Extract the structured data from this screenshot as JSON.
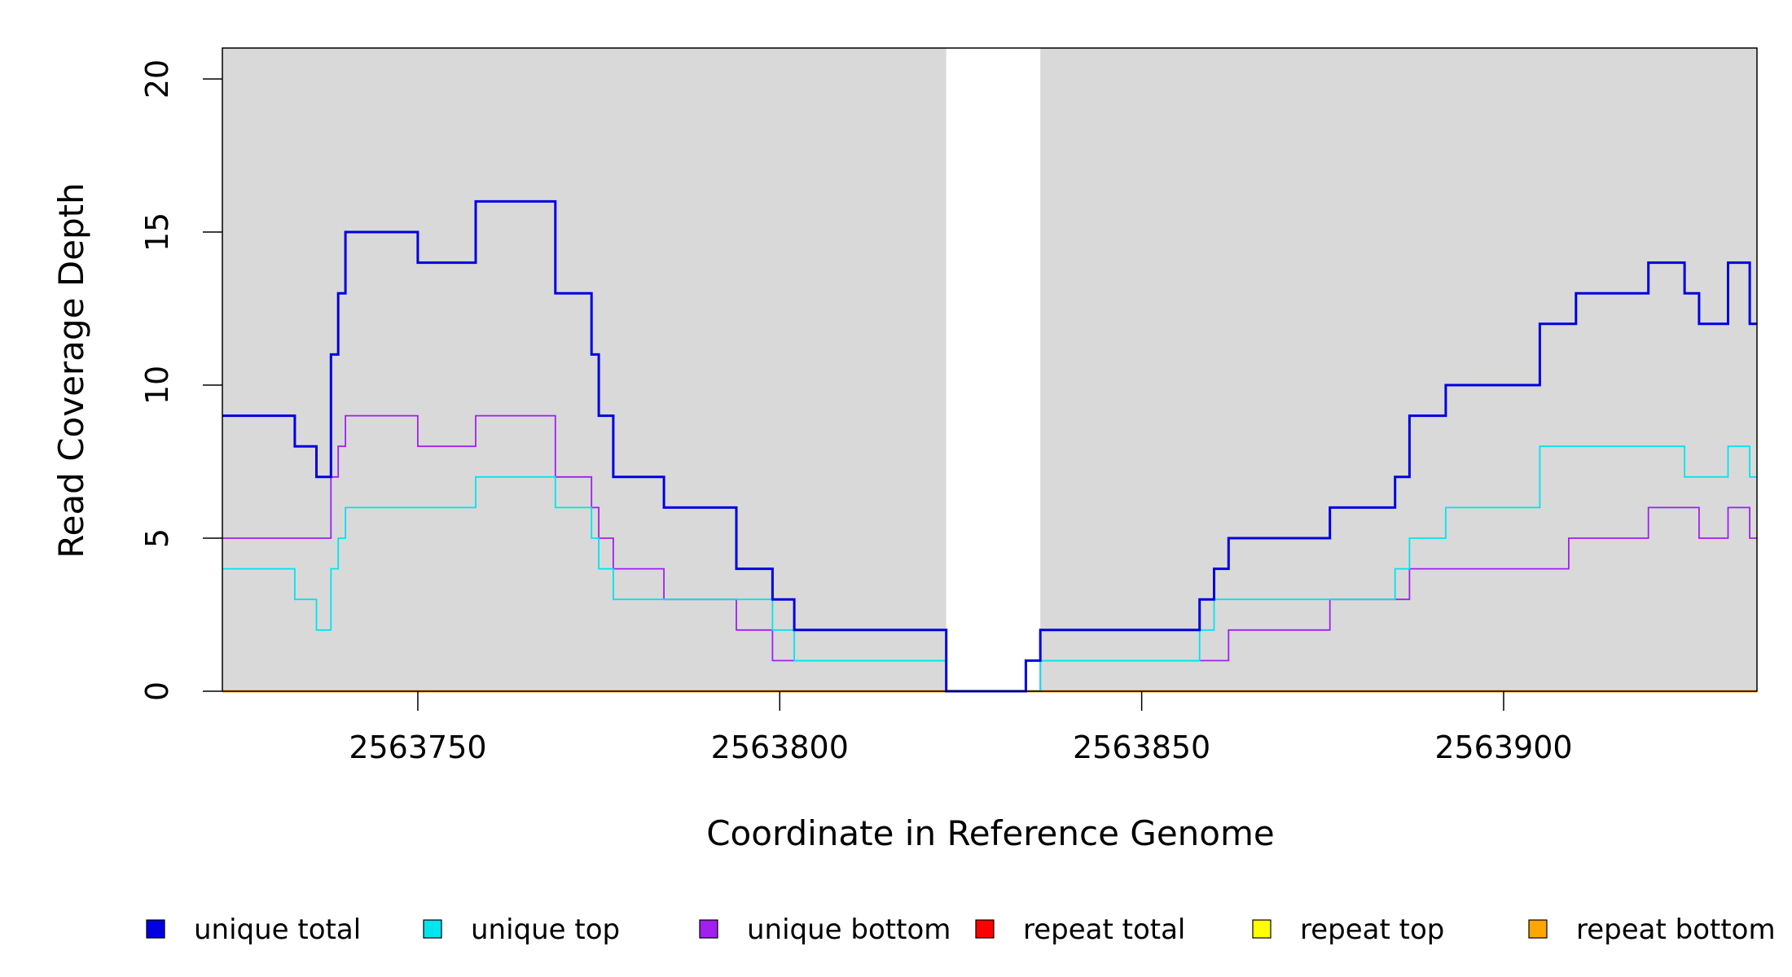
{
  "chart_data": {
    "type": "line",
    "step": true,
    "xlabel": "Coordinate in Reference Genome",
    "ylabel": "Read Coverage Depth",
    "xlim": [
      2563723,
      2563935
    ],
    "ylim": [
      0,
      20
    ],
    "x_ticks": [
      2563750,
      2563800,
      2563850,
      2563900
    ],
    "x_tick_labels": [
      "2563750",
      "2563800",
      "2563850",
      "2563900"
    ],
    "y_ticks": [
      0,
      5,
      10,
      15,
      20
    ],
    "y_tick_labels": [
      "0",
      "5",
      "10",
      "15",
      "20"
    ],
    "background_color": "#d9d9d9",
    "gap_region": [
      2563823,
      2563836
    ],
    "legend_position": "bottom",
    "series": [
      {
        "name": "unique total",
        "color": "#0000e0",
        "x": [
          2563723,
          2563733,
          2563736,
          2563738,
          2563739,
          2563740,
          2563750,
          2563758,
          2563769,
          2563774,
          2563775,
          2563777,
          2563784,
          2563794,
          2563799,
          2563802,
          2563823,
          2563834,
          2563836,
          2563858,
          2563860,
          2563862,
          2563876,
          2563885,
          2563887,
          2563892,
          2563905,
          2563910,
          2563920,
          2563925,
          2563927,
          2563931,
          2563934,
          2563935
        ],
        "values": [
          9,
          8,
          7,
          11,
          13,
          15,
          14,
          16,
          13,
          11,
          9,
          7,
          6,
          4,
          3,
          2,
          0,
          1,
          2,
          3,
          4,
          5,
          6,
          7,
          9,
          10,
          12,
          13,
          14,
          13,
          12,
          14,
          12,
          12
        ]
      },
      {
        "name": "unique top",
        "color": "#00e5ee",
        "x": [
          2563723,
          2563733,
          2563736,
          2563738,
          2563739,
          2563740,
          2563758,
          2563769,
          2563774,
          2563775,
          2563777,
          2563784,
          2563799,
          2563802,
          2563823,
          2563836,
          2563858,
          2563860,
          2563876,
          2563885,
          2563887,
          2563892,
          2563905,
          2563925,
          2563931,
          2563934,
          2563935
        ],
        "values": [
          4,
          3,
          2,
          4,
          5,
          6,
          7,
          6,
          5,
          4,
          3,
          3,
          2,
          1,
          0,
          1,
          2,
          3,
          3,
          4,
          5,
          6,
          8,
          7,
          8,
          7,
          7
        ]
      },
      {
        "name": "unique bottom",
        "color": "#a020f0",
        "x": [
          2563723,
          2563738,
          2563739,
          2563740,
          2563750,
          2563758,
          2563769,
          2563774,
          2563775,
          2563777,
          2563784,
          2563794,
          2563799,
          2563823,
          2563836,
          2563862,
          2563876,
          2563887,
          2563909,
          2563920,
          2563927,
          2563931,
          2563934,
          2563935
        ],
        "values": [
          5,
          7,
          8,
          9,
          8,
          9,
          7,
          6,
          5,
          4,
          3,
          2,
          1,
          0,
          1,
          2,
          3,
          4,
          5,
          6,
          5,
          6,
          5,
          5
        ]
      },
      {
        "name": "repeat total",
        "color": "#ff0000",
        "x": [
          2563723,
          2563935
        ],
        "values": [
          0,
          0
        ]
      },
      {
        "name": "repeat top",
        "color": "#ffff00",
        "x": [
          2563723,
          2563935
        ],
        "values": [
          0,
          0
        ]
      },
      {
        "name": "repeat bottom",
        "color": "#ffa500",
        "x": [
          2563723,
          2563935
        ],
        "values": [
          0,
          0
        ]
      }
    ]
  }
}
